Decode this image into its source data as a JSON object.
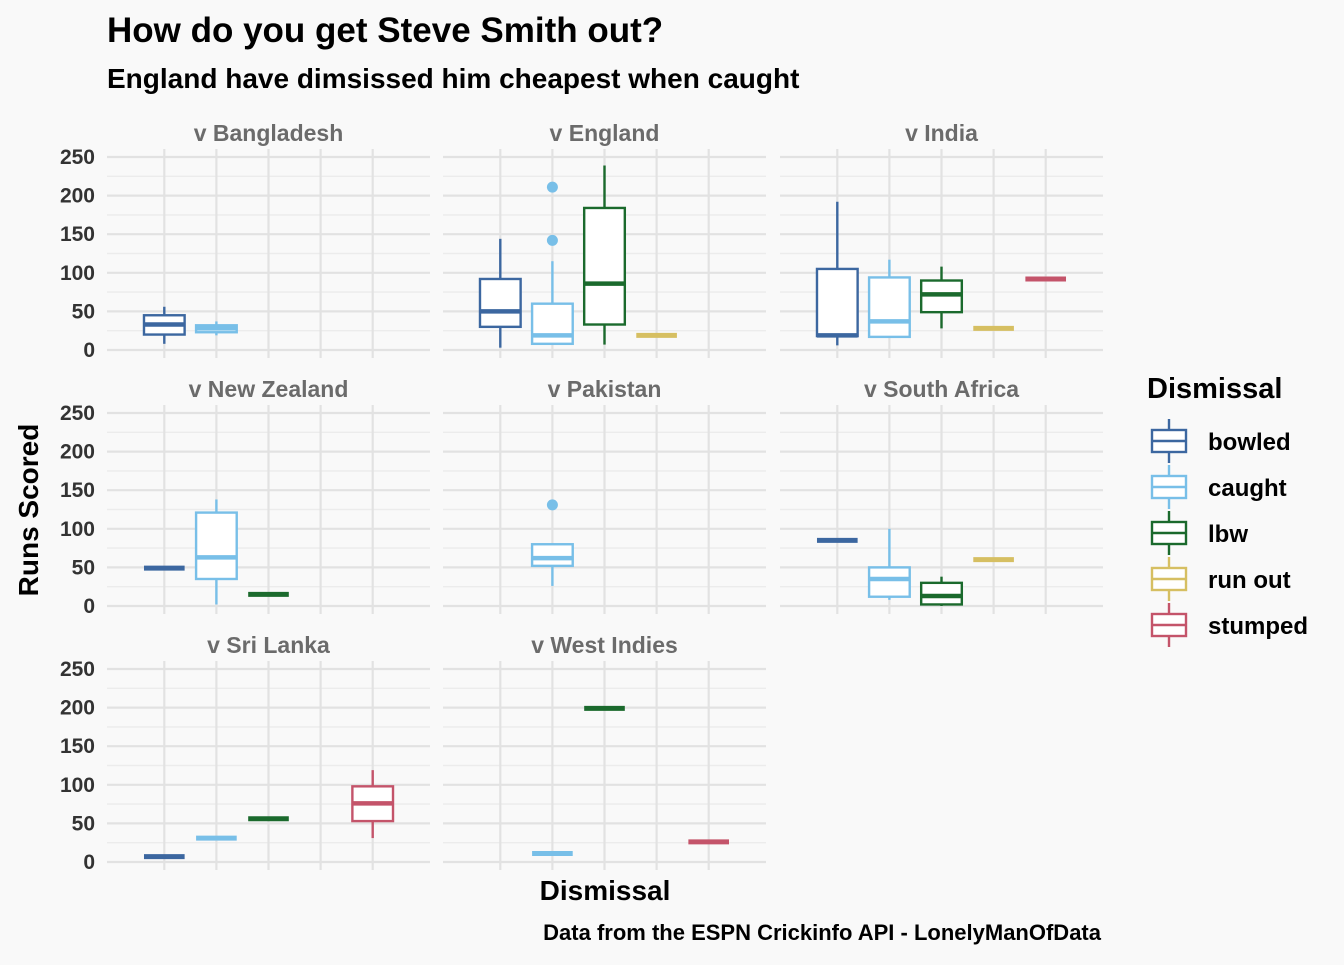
{
  "chart_data": {
    "type": "box",
    "title": "How do you get Steve Smith out?",
    "subtitle": "England have dimsissed him cheapest when caught",
    "xlabel": "Dismissal",
    "ylabel": "Runs Scored",
    "caption": "Data from the ESPN Crickinfo API - LonelyManOfData",
    "ylim": [
      0,
      250
    ],
    "yticks": [
      0,
      50,
      100,
      150,
      200,
      250
    ],
    "categories": [
      "bowled",
      "caught",
      "lbw",
      "run out",
      "stumped"
    ],
    "colors": {
      "bowled": "#3c67a0",
      "caught": "#78bfe8",
      "lbw": "#1b6a2d",
      "run out": "#d6bf62",
      "stumped": "#c4546a"
    },
    "legend": {
      "title": "Dismissal",
      "position": "right",
      "items": [
        "bowled",
        "caught",
        "lbw",
        "run out",
        "stumped"
      ]
    },
    "grid": true,
    "panels": [
      {
        "name": "v Bangladesh",
        "boxes": [
          {
            "dismissal": "bowled",
            "min": 8,
            "q1": 20,
            "median": 33,
            "q3": 45,
            "max": 56,
            "outliers": []
          },
          {
            "dismissal": "caught",
            "min": 19,
            "q1": 23,
            "median": 28,
            "q3": 32,
            "max": 37,
            "outliers": []
          }
        ]
      },
      {
        "name": "v England",
        "boxes": [
          {
            "dismissal": "bowled",
            "min": 3,
            "q1": 30,
            "median": 50,
            "q3": 92,
            "max": 144,
            "outliers": []
          },
          {
            "dismissal": "caught",
            "min": 7,
            "q1": 8,
            "median": 19,
            "q3": 60,
            "max": 115,
            "outliers": [
              142,
              211
            ]
          },
          {
            "dismissal": "lbw",
            "min": 7,
            "q1": 33,
            "median": 86,
            "q3": 184,
            "max": 239,
            "outliers": []
          },
          {
            "dismissal": "run out",
            "min": 19,
            "q1": 19,
            "median": 19,
            "q3": 19,
            "max": 19,
            "outliers": []
          }
        ]
      },
      {
        "name": "v India",
        "boxes": [
          {
            "dismissal": "bowled",
            "min": 6,
            "q1": 18,
            "median": 19,
            "q3": 105,
            "max": 192,
            "outliers": []
          },
          {
            "dismissal": "caught",
            "min": 17,
            "q1": 17,
            "median": 37,
            "q3": 94,
            "max": 117,
            "outliers": []
          },
          {
            "dismissal": "lbw",
            "min": 28,
            "q1": 49,
            "median": 72,
            "q3": 90,
            "max": 108,
            "outliers": []
          },
          {
            "dismissal": "run out",
            "min": 28,
            "q1": 28,
            "median": 28,
            "q3": 28,
            "max": 28,
            "outliers": []
          },
          {
            "dismissal": "stumped",
            "min": 92,
            "q1": 92,
            "median": 92,
            "q3": 92,
            "max": 92,
            "outliers": []
          }
        ]
      },
      {
        "name": "v New Zealand",
        "boxes": [
          {
            "dismissal": "bowled",
            "min": 49,
            "q1": 49,
            "median": 49,
            "q3": 49,
            "max": 49,
            "outliers": []
          },
          {
            "dismissal": "caught",
            "min": 2,
            "q1": 35,
            "median": 63,
            "q3": 121,
            "max": 138,
            "outliers": []
          },
          {
            "dismissal": "lbw",
            "min": 15,
            "q1": 15,
            "median": 15,
            "q3": 15,
            "max": 15,
            "outliers": []
          }
        ]
      },
      {
        "name": "v Pakistan",
        "boxes": [
          {
            "dismissal": "caught",
            "min": 26,
            "q1": 52,
            "median": 62,
            "q3": 80,
            "max": 80,
            "outliers": [
              131
            ]
          }
        ]
      },
      {
        "name": "v South Africa",
        "boxes": [
          {
            "dismissal": "bowled",
            "min": 85,
            "q1": 85,
            "median": 85,
            "q3": 85,
            "max": 85,
            "outliers": []
          },
          {
            "dismissal": "caught",
            "min": 8,
            "q1": 12,
            "median": 35,
            "q3": 50,
            "max": 100,
            "outliers": []
          },
          {
            "dismissal": "lbw",
            "min": 0,
            "q1": 2,
            "median": 13,
            "q3": 30,
            "max": 38,
            "outliers": []
          },
          {
            "dismissal": "run out",
            "min": 60,
            "q1": 60,
            "median": 60,
            "q3": 60,
            "max": 60,
            "outliers": []
          }
        ]
      },
      {
        "name": "v Sri Lanka",
        "boxes": [
          {
            "dismissal": "bowled",
            "min": 7,
            "q1": 7,
            "median": 7,
            "q3": 7,
            "max": 7,
            "outliers": []
          },
          {
            "dismissal": "caught",
            "min": 31,
            "q1": 31,
            "median": 31,
            "q3": 31,
            "max": 31,
            "outliers": []
          },
          {
            "dismissal": "lbw",
            "min": 56,
            "q1": 56,
            "median": 56,
            "q3": 56,
            "max": 56,
            "outliers": []
          },
          {
            "dismissal": "stumped",
            "min": 31,
            "q1": 53,
            "median": 76,
            "q3": 98,
            "max": 119,
            "outliers": []
          }
        ]
      },
      {
        "name": "v West Indies",
        "boxes": [
          {
            "dismissal": "caught",
            "min": 11,
            "q1": 11,
            "median": 11,
            "q3": 11,
            "max": 11,
            "outliers": []
          },
          {
            "dismissal": "lbw",
            "min": 199,
            "q1": 199,
            "median": 199,
            "q3": 199,
            "max": 199,
            "outliers": []
          },
          {
            "dismissal": "stumped",
            "min": 26,
            "q1": 26,
            "median": 26,
            "q3": 26,
            "max": 26,
            "outliers": []
          }
        ]
      }
    ]
  }
}
